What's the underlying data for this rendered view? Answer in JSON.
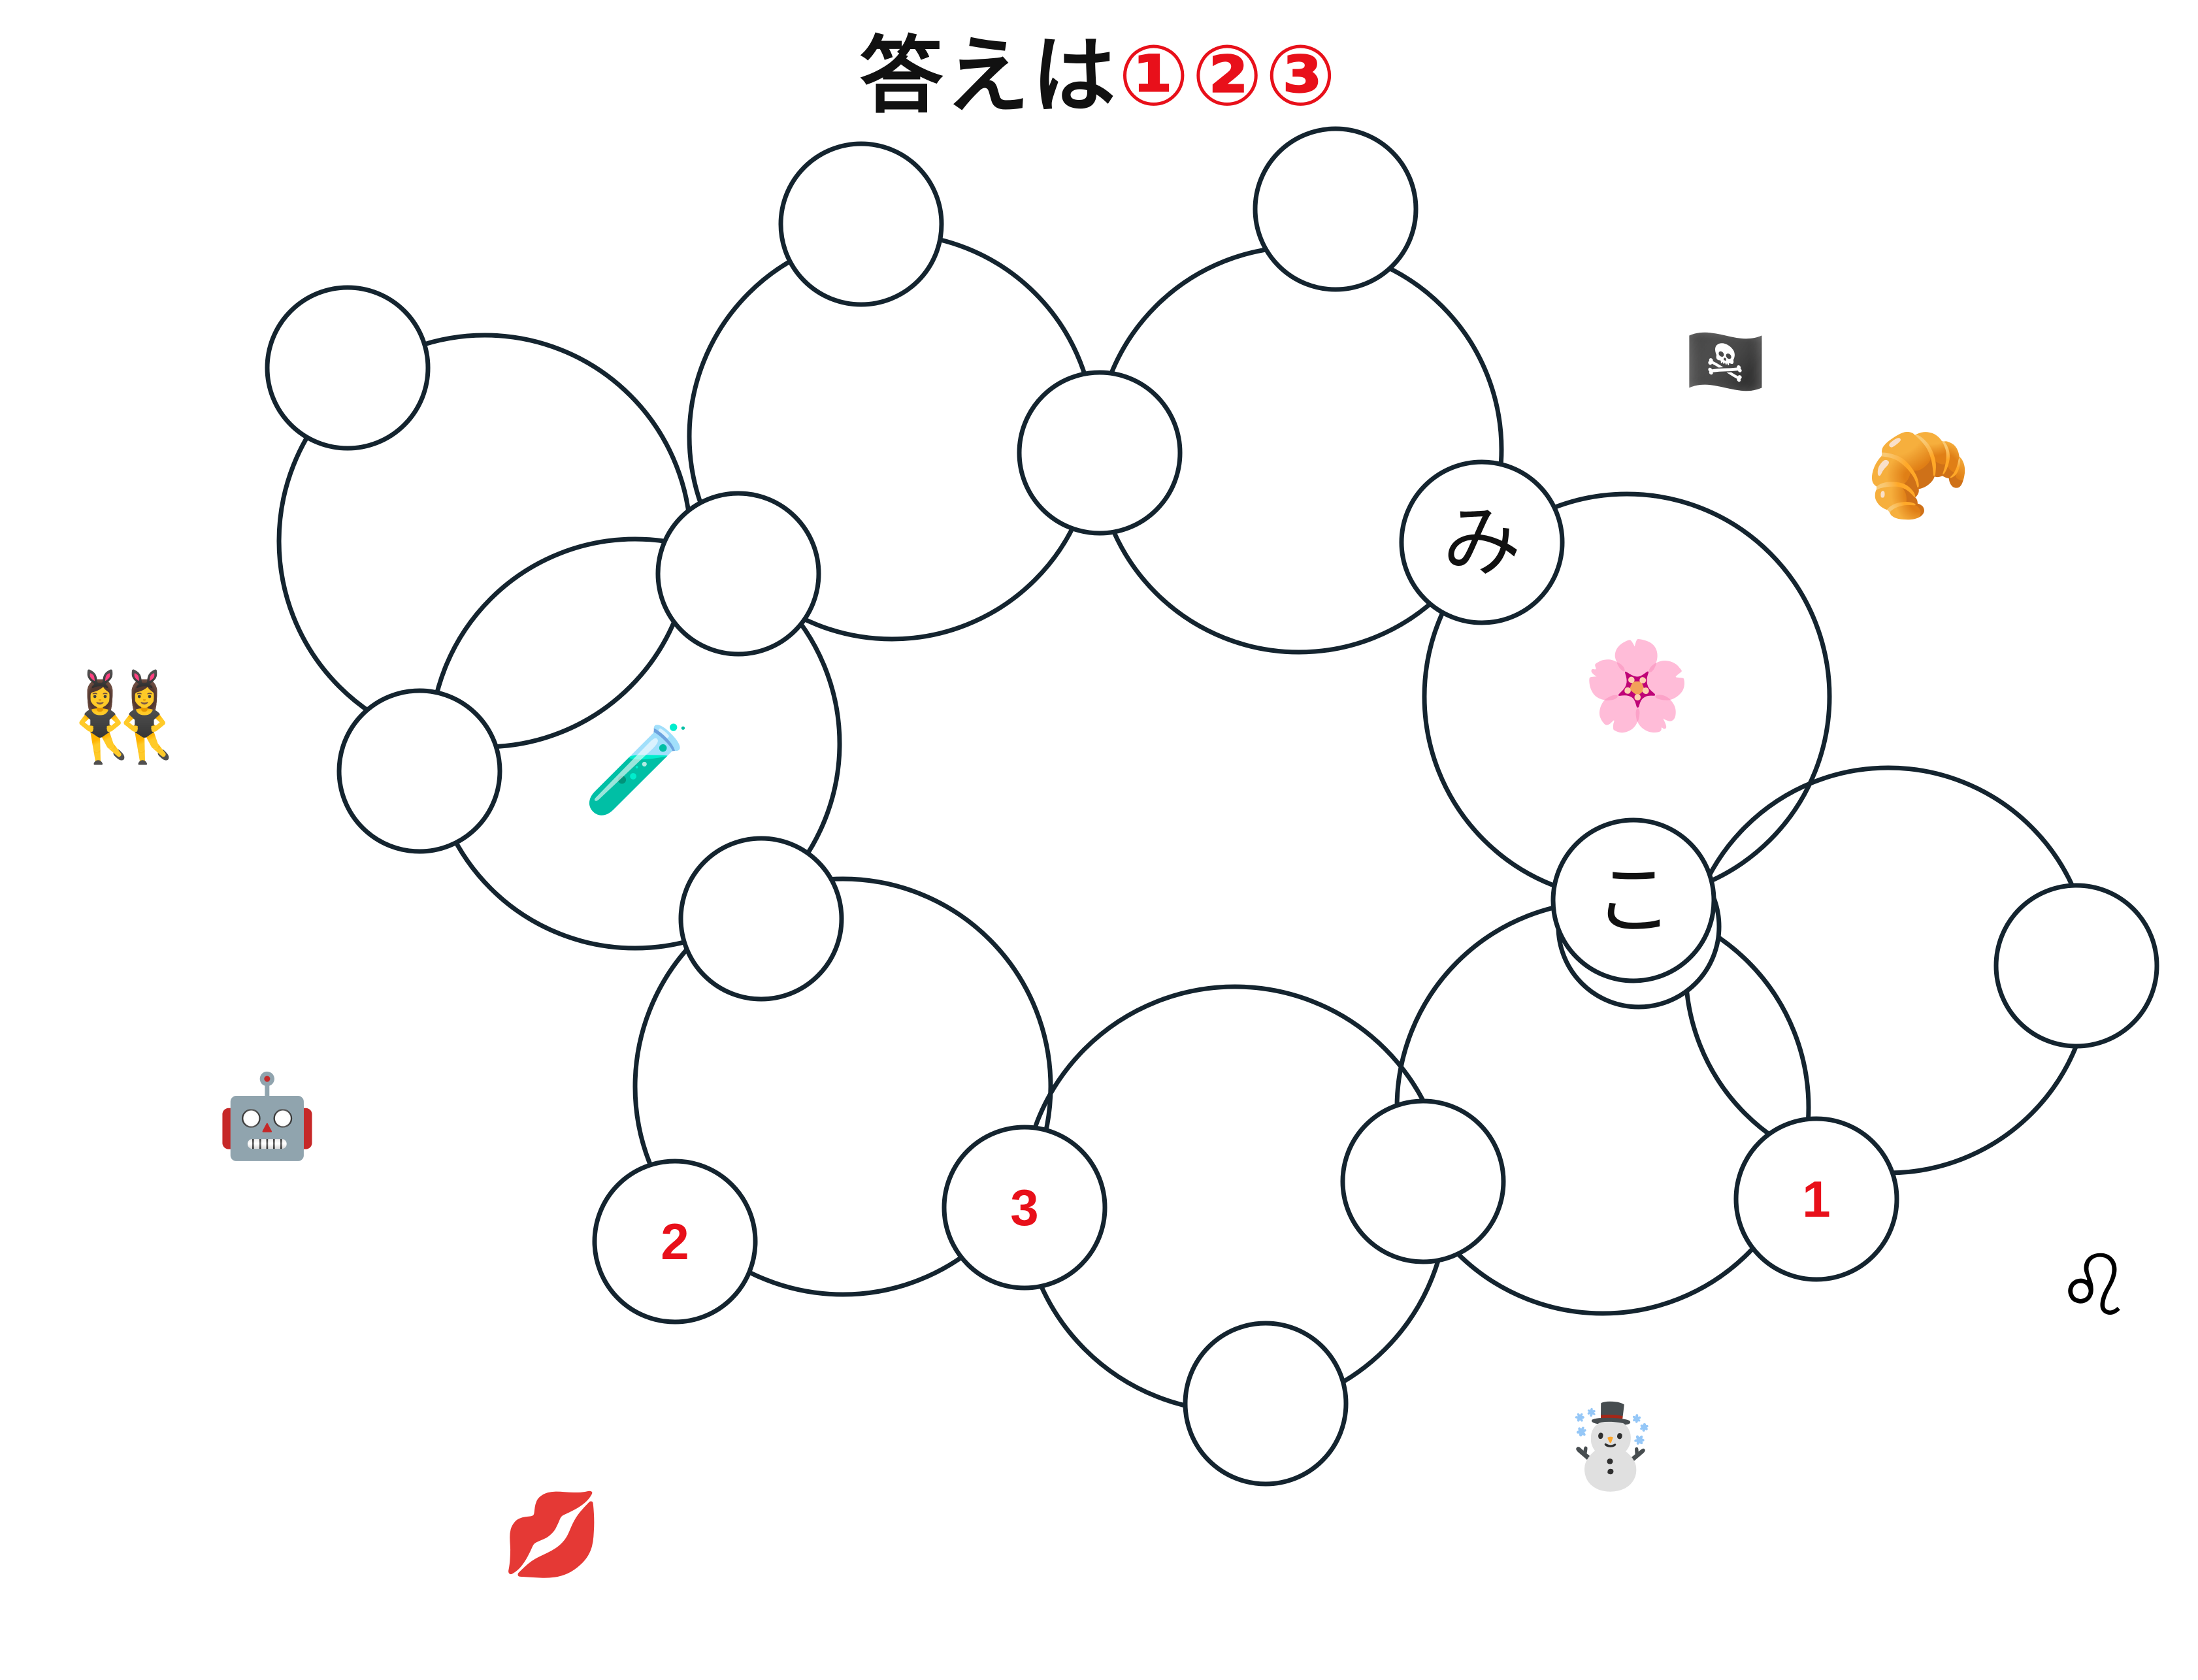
{
  "title": {
    "text": "答えは",
    "answer": "①②③"
  },
  "colors": {
    "ring_stroke": "#14242f",
    "small_fill": "#ffffff",
    "clue_number": "#e8101a",
    "kana_text": "#111111",
    "title_text": "#111111",
    "title_answer": "#e8101a"
  },
  "large_rings": [
    {
      "name": "ring-upper-left"
    },
    {
      "name": "ring-left-center"
    },
    {
      "name": "ring-top-middle"
    },
    {
      "name": "ring-top-right"
    },
    {
      "name": "ring-right-blossom"
    },
    {
      "name": "ring-far-right"
    },
    {
      "name": "ring-lower-right"
    },
    {
      "name": "ring-bottom-middle"
    },
    {
      "name": "ring-bottom-left"
    }
  ],
  "small_circles": [
    {
      "name": "slot-1",
      "text": "",
      "kind": "blank"
    },
    {
      "name": "slot-2",
      "text": "",
      "kind": "blank"
    },
    {
      "name": "slot-3",
      "text": "",
      "kind": "blank"
    },
    {
      "name": "slot-4",
      "text": "",
      "kind": "blank"
    },
    {
      "name": "slot-5",
      "text": "",
      "kind": "blank"
    },
    {
      "name": "slot-6",
      "text": "",
      "kind": "blank"
    },
    {
      "name": "slot-7",
      "text": "み",
      "kind": "kana"
    },
    {
      "name": "slot-8",
      "text": "",
      "kind": "blank"
    },
    {
      "name": "slot-9",
      "text": "",
      "kind": "blank"
    },
    {
      "name": "slot-10",
      "text": "こ",
      "kind": "kana"
    },
    {
      "name": "slot-11",
      "text": "",
      "kind": "blank"
    },
    {
      "name": "slot-12",
      "text": "1",
      "kind": "number"
    },
    {
      "name": "slot-13",
      "text": "",
      "kind": "blank"
    },
    {
      "name": "slot-14",
      "text": "",
      "kind": "blank"
    },
    {
      "name": "slot-15",
      "text": "3",
      "kind": "number"
    },
    {
      "name": "slot-16",
      "text": "2",
      "kind": "number"
    }
  ],
  "emojis": [
    {
      "name": "pirate-flag-icon",
      "char": "🏴‍☠️"
    },
    {
      "name": "croissant-icon",
      "char": "🥐"
    },
    {
      "name": "cherry-blossom-icon",
      "char": "🌸"
    },
    {
      "name": "test-tube-icon",
      "char": "🧪"
    },
    {
      "name": "bunny-dancers-icon",
      "char": "👯‍♀️"
    },
    {
      "name": "robot-icon",
      "char": "🤖"
    },
    {
      "name": "leo-icon",
      "char": "♌"
    },
    {
      "name": "snowman-icon",
      "char": "☃️"
    },
    {
      "name": "kiss-mark-icon",
      "char": "💋"
    }
  ]
}
